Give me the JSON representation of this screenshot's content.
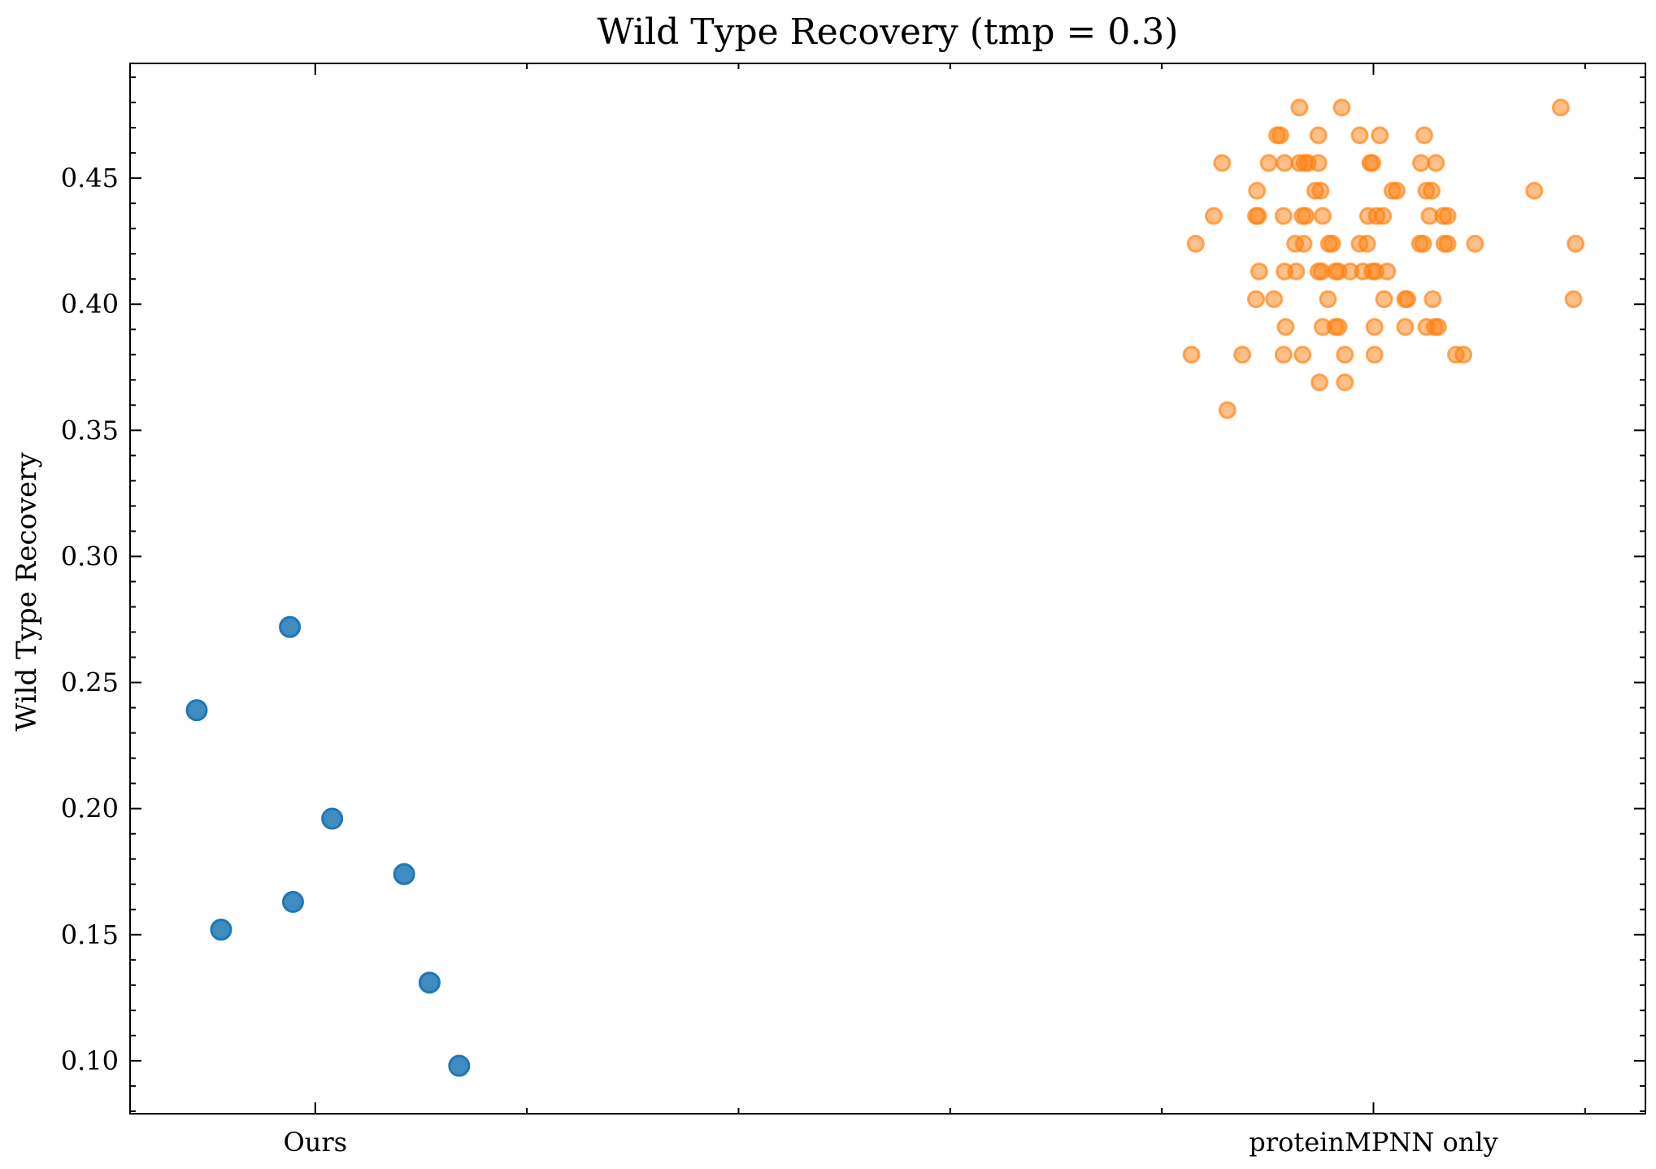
{
  "chart_data": {
    "type": "scatter",
    "title": "Wild Type Recovery (tmp = 0.3)",
    "xlabel": "",
    "ylabel": "Wild Type Recovery",
    "categories": [
      "Ours",
      "proteinMPNN only"
    ],
    "xlim": [
      -0.175,
      1.257
    ],
    "ylim": [
      0.079,
      0.4955
    ],
    "yticks": [
      0.1,
      0.15,
      0.2,
      0.25,
      0.3,
      0.35,
      0.4,
      0.45
    ],
    "ytick_labels": [
      "0.10",
      "0.15",
      "0.20",
      "0.25",
      "0.30",
      "0.35",
      "0.40",
      "0.45"
    ],
    "grid": false,
    "series": [
      {
        "color": "#1f77b4",
        "alpha": 0.85,
        "points": [
          {
            "x": -0.112,
            "y": 0.239
          },
          {
            "x": -0.024,
            "y": 0.272
          },
          {
            "x": -0.089,
            "y": 0.152
          },
          {
            "x": -0.021,
            "y": 0.163
          },
          {
            "x": 0.016,
            "y": 0.196
          },
          {
            "x": 0.084,
            "y": 0.174
          },
          {
            "x": 0.108,
            "y": 0.131
          },
          {
            "x": 0.136,
            "y": 0.098
          }
        ]
      },
      {
        "color": "#ff7f0e",
        "alpha": 0.5,
        "points": [
          {
            "x": 0.93,
            "y": 0.478
          },
          {
            "x": 0.97,
            "y": 0.478
          },
          {
            "x": 1.177,
            "y": 0.478
          },
          {
            "x": 0.909,
            "y": 0.467
          },
          {
            "x": 0.912,
            "y": 0.467
          },
          {
            "x": 0.948,
            "y": 0.467
          },
          {
            "x": 0.987,
            "y": 0.467
          },
          {
            "x": 1.006,
            "y": 0.467
          },
          {
            "x": 1.048,
            "y": 0.467
          },
          {
            "x": 0.857,
            "y": 0.456
          },
          {
            "x": 0.901,
            "y": 0.456
          },
          {
            "x": 0.916,
            "y": 0.456
          },
          {
            "x": 0.93,
            "y": 0.456
          },
          {
            "x": 0.935,
            "y": 0.456
          },
          {
            "x": 0.938,
            "y": 0.456
          },
          {
            "x": 0.948,
            "y": 0.456
          },
          {
            "x": 0.997,
            "y": 0.456
          },
          {
            "x": 0.999,
            "y": 0.456
          },
          {
            "x": 1.045,
            "y": 0.456
          },
          {
            "x": 1.059,
            "y": 0.456
          },
          {
            "x": 0.89,
            "y": 0.445
          },
          {
            "x": 0.945,
            "y": 0.445
          },
          {
            "x": 0.95,
            "y": 0.445
          },
          {
            "x": 1.018,
            "y": 0.445
          },
          {
            "x": 1.022,
            "y": 0.445
          },
          {
            "x": 1.05,
            "y": 0.445
          },
          {
            "x": 1.055,
            "y": 0.445
          },
          {
            "x": 1.152,
            "y": 0.445
          },
          {
            "x": 0.849,
            "y": 0.435
          },
          {
            "x": 0.889,
            "y": 0.435
          },
          {
            "x": 0.891,
            "y": 0.435
          },
          {
            "x": 0.915,
            "y": 0.435
          },
          {
            "x": 0.933,
            "y": 0.435
          },
          {
            "x": 0.936,
            "y": 0.435
          },
          {
            "x": 0.952,
            "y": 0.435
          },
          {
            "x": 0.995,
            "y": 0.435
          },
          {
            "x": 1.003,
            "y": 0.435
          },
          {
            "x": 1.009,
            "y": 0.435
          },
          {
            "x": 1.053,
            "y": 0.435
          },
          {
            "x": 1.066,
            "y": 0.435
          },
          {
            "x": 1.07,
            "y": 0.435
          },
          {
            "x": 0.832,
            "y": 0.424
          },
          {
            "x": 0.926,
            "y": 0.424
          },
          {
            "x": 0.934,
            "y": 0.424
          },
          {
            "x": 0.958,
            "y": 0.424
          },
          {
            "x": 0.961,
            "y": 0.424
          },
          {
            "x": 0.987,
            "y": 0.424
          },
          {
            "x": 0.994,
            "y": 0.424
          },
          {
            "x": 1.044,
            "y": 0.424
          },
          {
            "x": 1.047,
            "y": 0.424
          },
          {
            "x": 1.067,
            "y": 0.424
          },
          {
            "x": 1.07,
            "y": 0.424
          },
          {
            "x": 1.096,
            "y": 0.424
          },
          {
            "x": 1.191,
            "y": 0.424
          },
          {
            "x": 0.892,
            "y": 0.413
          },
          {
            "x": 0.916,
            "y": 0.413
          },
          {
            "x": 0.927,
            "y": 0.413
          },
          {
            "x": 0.948,
            "y": 0.413
          },
          {
            "x": 0.951,
            "y": 0.413
          },
          {
            "x": 0.964,
            "y": 0.413
          },
          {
            "x": 0.967,
            "y": 0.413
          },
          {
            "x": 0.978,
            "y": 0.413
          },
          {
            "x": 0.99,
            "y": 0.413
          },
          {
            "x": 0.999,
            "y": 0.413
          },
          {
            "x": 1.002,
            "y": 0.413
          },
          {
            "x": 1.013,
            "y": 0.413
          },
          {
            "x": 0.889,
            "y": 0.402
          },
          {
            "x": 0.906,
            "y": 0.402
          },
          {
            "x": 0.957,
            "y": 0.402
          },
          {
            "x": 1.01,
            "y": 0.402
          },
          {
            "x": 1.03,
            "y": 0.402
          },
          {
            "x": 1.032,
            "y": 0.402
          },
          {
            "x": 1.056,
            "y": 0.402
          },
          {
            "x": 1.189,
            "y": 0.402
          },
          {
            "x": 0.917,
            "y": 0.391
          },
          {
            "x": 0.952,
            "y": 0.391
          },
          {
            "x": 0.964,
            "y": 0.391
          },
          {
            "x": 0.967,
            "y": 0.391
          },
          {
            "x": 1.001,
            "y": 0.391
          },
          {
            "x": 1.03,
            "y": 0.391
          },
          {
            "x": 1.05,
            "y": 0.391
          },
          {
            "x": 1.058,
            "y": 0.391
          },
          {
            "x": 1.061,
            "y": 0.391
          },
          {
            "x": 0.828,
            "y": 0.38
          },
          {
            "x": 0.876,
            "y": 0.38
          },
          {
            "x": 0.915,
            "y": 0.38
          },
          {
            "x": 0.933,
            "y": 0.38
          },
          {
            "x": 0.973,
            "y": 0.38
          },
          {
            "x": 1.001,
            "y": 0.38
          },
          {
            "x": 1.078,
            "y": 0.38
          },
          {
            "x": 1.085,
            "y": 0.38
          },
          {
            "x": 0.949,
            "y": 0.369
          },
          {
            "x": 0.973,
            "y": 0.369
          },
          {
            "x": 0.862,
            "y": 0.358
          }
        ]
      }
    ]
  }
}
